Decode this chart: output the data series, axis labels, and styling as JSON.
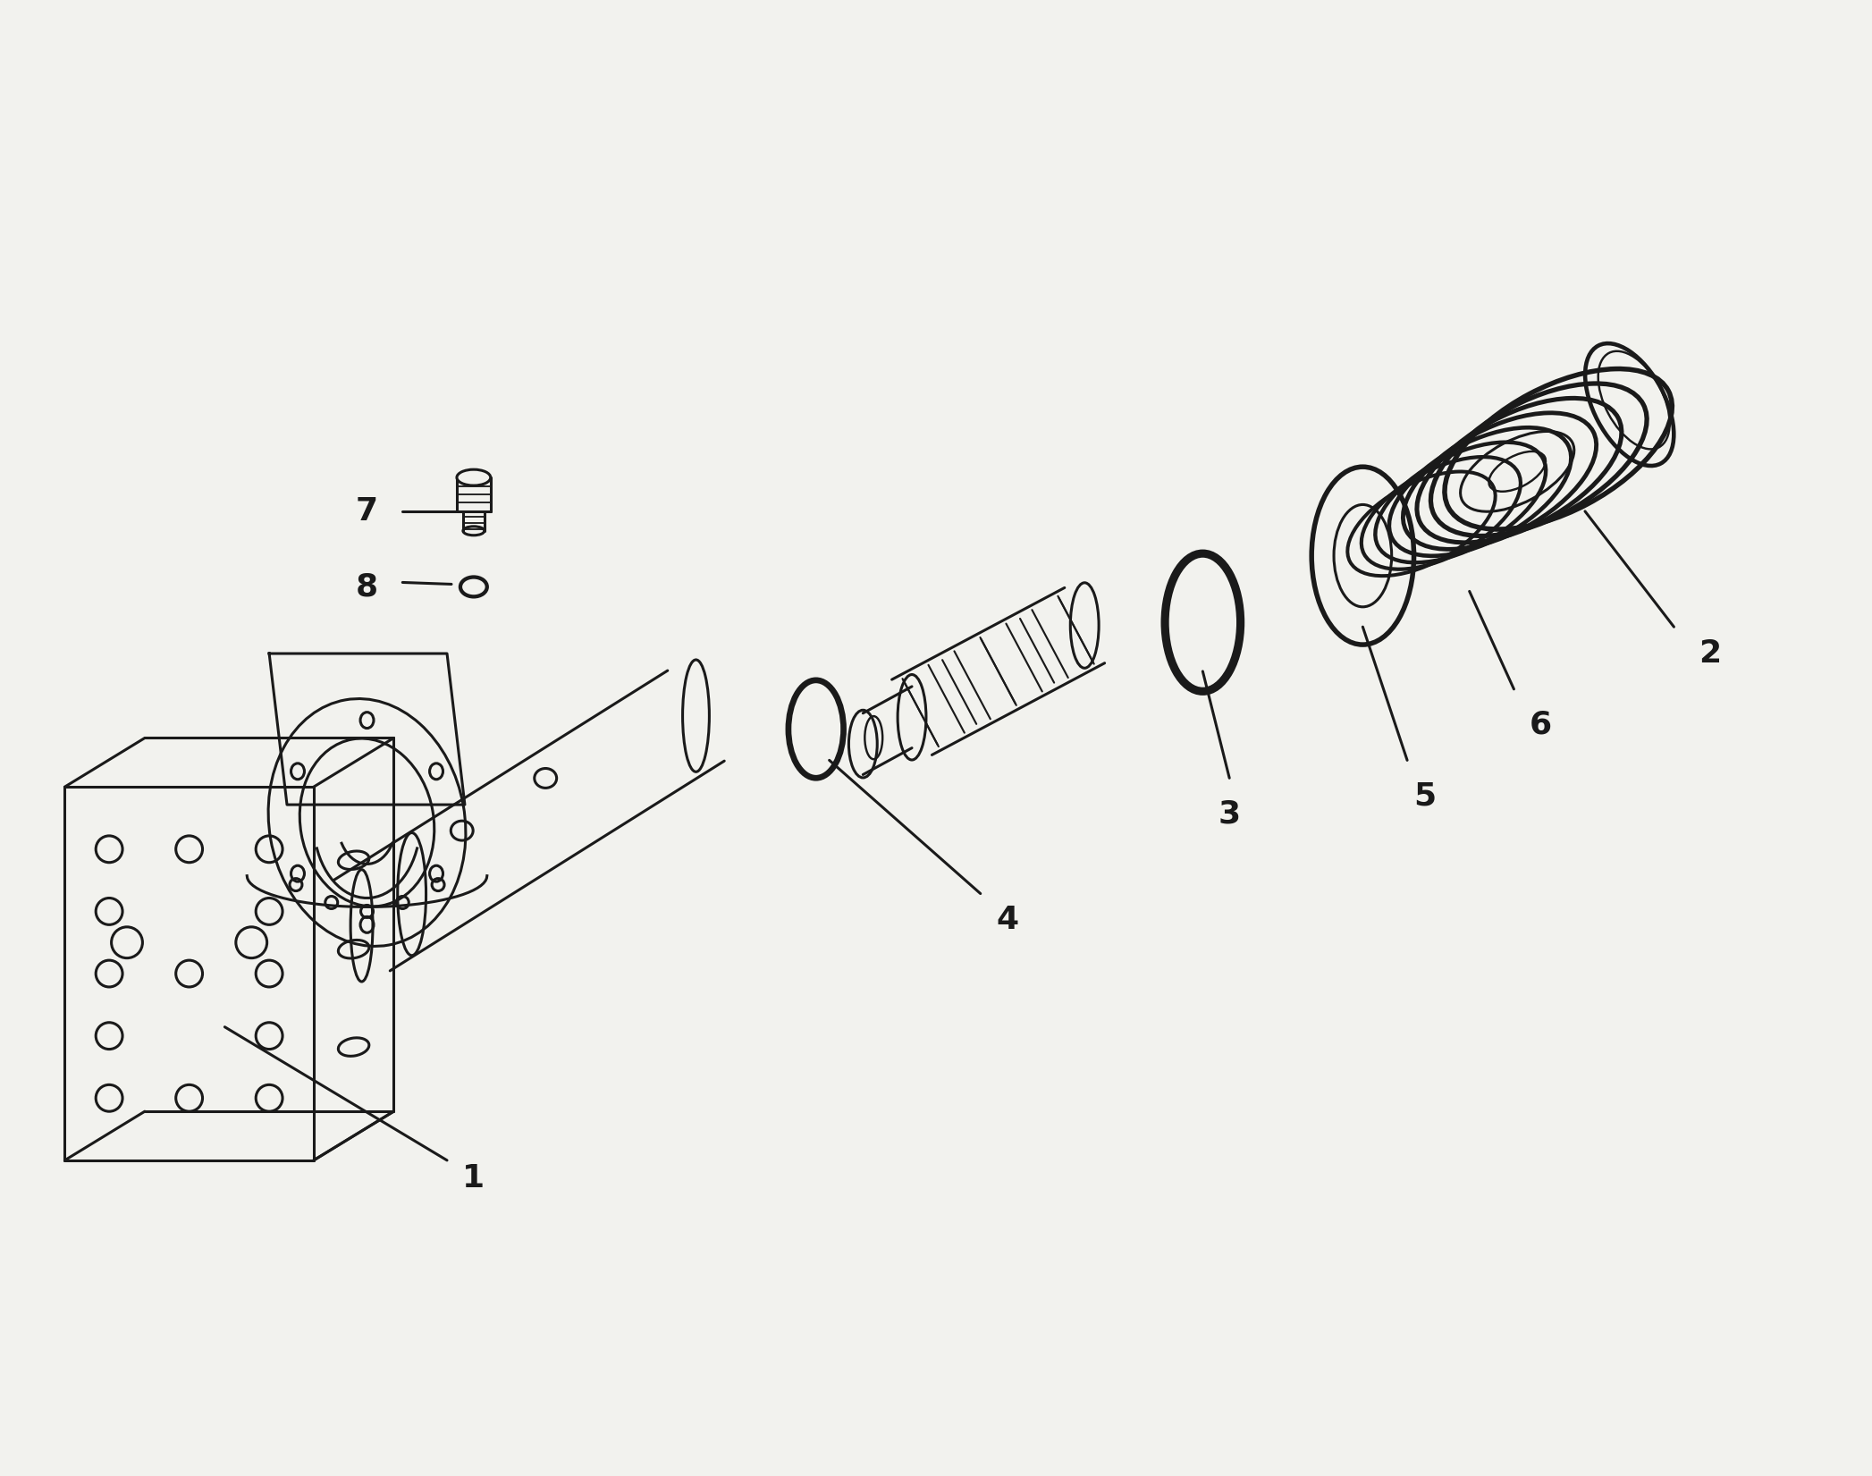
{
  "bg_color": "#f2f2ee",
  "line_color": "#1a1a1a",
  "line_width": 2.2,
  "label_fontsize": 26,
  "fig_width": 20.94,
  "fig_height": 16.51
}
